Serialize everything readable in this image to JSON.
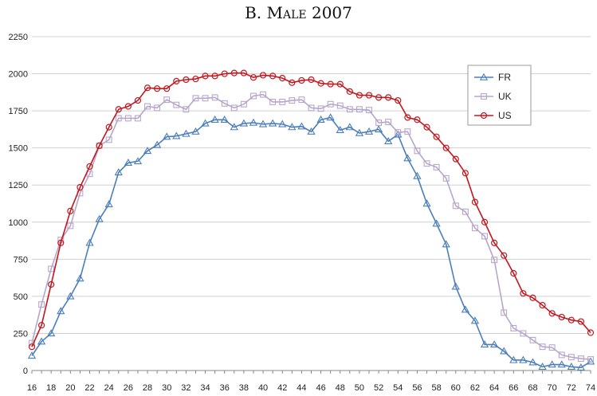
{
  "chart_data": {
    "type": "line",
    "title": "B. Male 2007",
    "xlabel": "",
    "ylabel": "",
    "ylim": [
      0,
      2250
    ],
    "xlim": [
      16,
      74
    ],
    "y_ticks": [
      0,
      250,
      500,
      750,
      1000,
      1250,
      1500,
      1750,
      2000,
      2250
    ],
    "x_ticks": [
      16,
      18,
      20,
      22,
      24,
      26,
      28,
      30,
      32,
      34,
      36,
      38,
      40,
      42,
      44,
      46,
      48,
      50,
      52,
      54,
      56,
      58,
      60,
      62,
      64,
      66,
      68,
      70,
      72,
      74
    ],
    "grid": "horizontal",
    "legend_position": "right",
    "x": [
      16,
      17,
      18,
      19,
      20,
      21,
      22,
      23,
      24,
      25,
      26,
      27,
      28,
      29,
      30,
      31,
      32,
      33,
      34,
      35,
      36,
      37,
      38,
      39,
      40,
      41,
      42,
      43,
      44,
      45,
      46,
      47,
      48,
      49,
      50,
      51,
      52,
      53,
      54,
      55,
      56,
      57,
      58,
      59,
      60,
      61,
      62,
      63,
      64,
      65,
      66,
      67,
      68,
      69,
      70,
      71,
      72,
      73,
      74
    ],
    "series": [
      {
        "name": "FR",
        "color": "#4a7ebb",
        "marker": "triangle",
        "values": [
          100,
          195,
          250,
          400,
          500,
          620,
          860,
          1020,
          1120,
          1335,
          1400,
          1410,
          1480,
          1520,
          1575,
          1580,
          1595,
          1610,
          1665,
          1690,
          1690,
          1640,
          1665,
          1670,
          1660,
          1665,
          1660,
          1640,
          1645,
          1610,
          1690,
          1705,
          1620,
          1640,
          1600,
          1610,
          1625,
          1545,
          1590,
          1430,
          1310,
          1125,
          990,
          850,
          565,
          410,
          335,
          175,
          175,
          130,
          70,
          70,
          55,
          25,
          40,
          40,
          25,
          20,
          60
        ]
      },
      {
        "name": "UK",
        "color": "#b7a6cb",
        "marker": "square",
        "values": [
          185,
          445,
          685,
          880,
          975,
          1195,
          1325,
          1515,
          1555,
          1700,
          1700,
          1700,
          1780,
          1770,
          1825,
          1790,
          1760,
          1835,
          1835,
          1840,
          1800,
          1770,
          1795,
          1850,
          1860,
          1810,
          1810,
          1820,
          1825,
          1770,
          1765,
          1795,
          1785,
          1760,
          1760,
          1755,
          1670,
          1675,
          1605,
          1610,
          1480,
          1395,
          1370,
          1295,
          1110,
          1070,
          960,
          905,
          745,
          390,
          285,
          250,
          205,
          160,
          155,
          105,
          90,
          80,
          75
        ]
      },
      {
        "name": "US",
        "color": "#c0181e",
        "marker": "circle",
        "values": [
          160,
          305,
          580,
          860,
          1075,
          1235,
          1375,
          1515,
          1640,
          1760,
          1780,
          1820,
          1905,
          1900,
          1900,
          1950,
          1960,
          1965,
          1985,
          1985,
          2000,
          2005,
          2005,
          1975,
          1990,
          1985,
          1970,
          1940,
          1955,
          1960,
          1935,
          1930,
          1930,
          1880,
          1855,
          1855,
          1840,
          1840,
          1820,
          1705,
          1690,
          1640,
          1575,
          1500,
          1425,
          1330,
          1135,
          1000,
          860,
          775,
          655,
          520,
          490,
          440,
          385,
          360,
          340,
          330,
          255
        ]
      }
    ]
  }
}
